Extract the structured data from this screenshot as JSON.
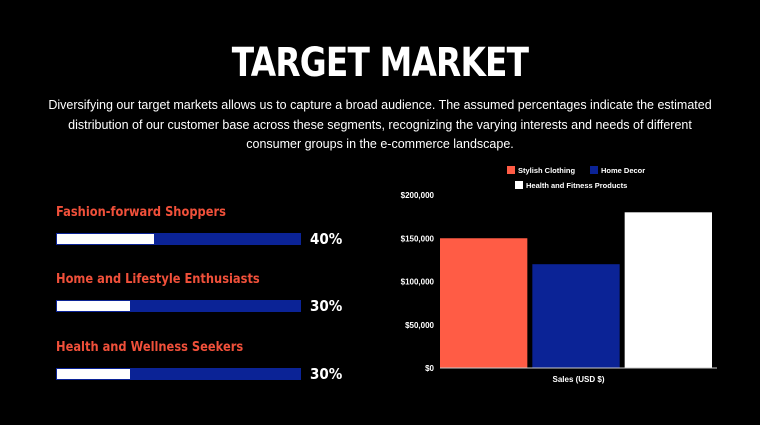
{
  "slide": {
    "title": "TARGET MARKET",
    "intro": "Diversifying our target markets allows us to capture a broad audience. The assumed percentages indicate the estimated distribution of our customer base across these segments, recognizing the varying interests and needs of different consumer groups in the e-commerce landscape."
  },
  "segments": [
    {
      "label": "Fashion-forward Shoppers",
      "percent_text": "40%",
      "fill_fraction": 0.4
    },
    {
      "label": "Home and Lifestyle Enthusiasts",
      "percent_text": "30%",
      "fill_fraction": 0.3
    },
    {
      "label": "Health and Wellness Seekers",
      "percent_text": "30%",
      "fill_fraction": 0.3
    }
  ],
  "colors": {
    "background": "#000000",
    "accent_red": "#f0503a",
    "bar_blue": "#0b2396",
    "stylish_clothing": "#ff5c45",
    "home_decor": "#0b2396",
    "health_fitness": "#ffffff"
  },
  "chart_data": {
    "type": "bar",
    "categories": [
      "Sales (USD $)"
    ],
    "xlabel": "Sales (USD $)",
    "ylabel": "",
    "ylim": [
      0,
      200000
    ],
    "yticks": [
      0,
      50000,
      100000,
      150000,
      200000
    ],
    "ytick_labels": [
      "$0",
      "$50,000",
      "$100,000",
      "$150,000",
      "$200,000"
    ],
    "legend_position": "top",
    "grid": false,
    "series": [
      {
        "name": "Stylish Clothing",
        "values": [
          150000
        ],
        "color": "#ff5c45"
      },
      {
        "name": "Home Decor",
        "values": [
          120000
        ],
        "color": "#0b2396"
      },
      {
        "name": "Health and Fitness Products",
        "values": [
          180000
        ],
        "color": "#ffffff"
      }
    ]
  }
}
